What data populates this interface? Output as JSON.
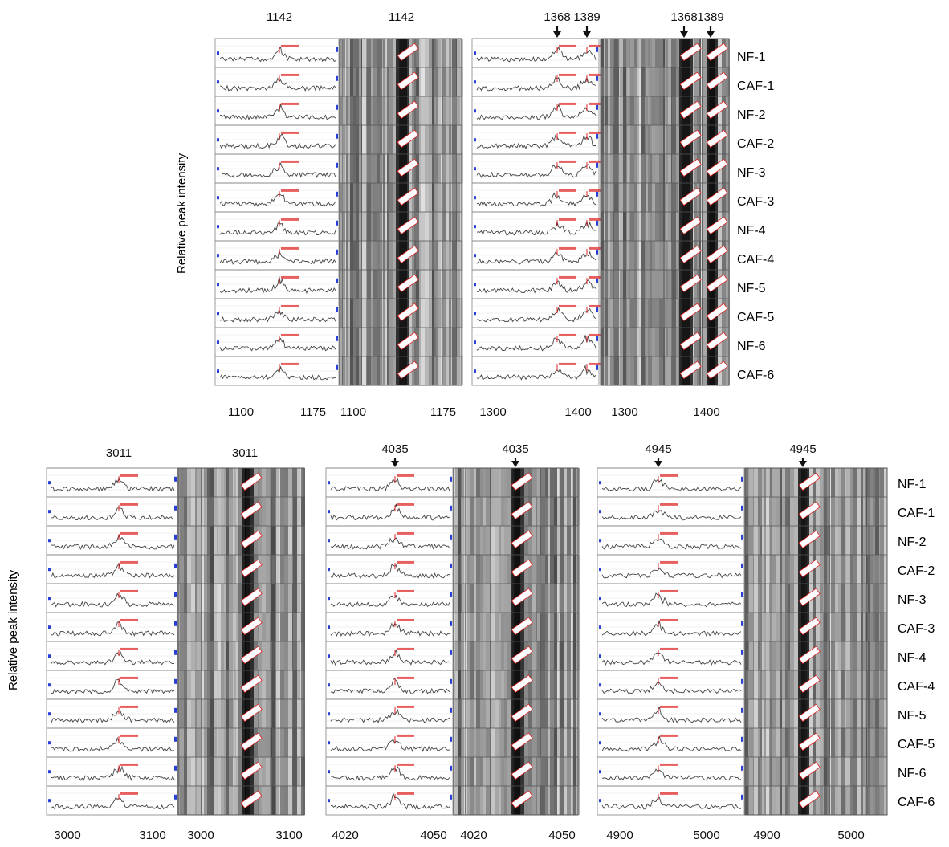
{
  "figure": {
    "ylabel": "Relative peak intensity",
    "samples": [
      "NF-1",
      "CAF-1",
      "NF-2",
      "CAF-2",
      "NF-3",
      "CAF-3",
      "NF-4",
      "CAF-4",
      "NF-5",
      "CAF-5",
      "NF-6",
      "CAF-6"
    ]
  },
  "chart_data": [
    {
      "type": "line",
      "description": "MALDI spectra around m/z 1142 (line view + gel view)",
      "peak_labels": [
        "1142",
        "1142"
      ],
      "x_ticks": [
        "1100",
        "1175"
      ],
      "gel_x_ticks": [
        "1100",
        "1175"
      ],
      "xlim": [
        1080,
        1200
      ]
    },
    {
      "type": "line",
      "description": "MALDI spectra around m/z 1368 and 1389 (line view + gel view)",
      "peak_labels": [
        "1368",
        "1389",
        "1368",
        "1389"
      ],
      "x_ticks": [
        "1300",
        "1400"
      ],
      "gel_x_ticks": [
        "1300",
        "1400"
      ],
      "xlim": [
        1280,
        1420
      ]
    },
    {
      "type": "line",
      "description": "MALDI spectra around m/z 3011 (line view + gel view)",
      "peak_labels": [
        "3011",
        "3011"
      ],
      "x_ticks": [
        "3000",
        "3100"
      ],
      "gel_x_ticks": [
        "3000",
        "3100"
      ],
      "xlim": [
        2990,
        3120
      ]
    },
    {
      "type": "line",
      "description": "MALDI spectra around m/z 4035 (line view + gel view)",
      "peak_labels": [
        "4035",
        "4035"
      ],
      "x_ticks": [
        "4020",
        "4050"
      ],
      "gel_x_ticks": [
        "4020",
        "4050"
      ],
      "xlim": [
        4015,
        4052
      ]
    },
    {
      "type": "line",
      "description": "MALDI spectra around m/z 4945 (line view + gel view)",
      "peak_labels": [
        "4945",
        "4945"
      ],
      "x_ticks": [
        "4900",
        "5000"
      ],
      "gel_x_ticks": [
        "4900",
        "5000"
      ],
      "xlim": [
        4890,
        5010
      ]
    }
  ],
  "colors": {
    "trace": "#444444",
    "peak_marker": "#e02020",
    "gel_dark": "#000000",
    "gel_light": "#e8e8e8",
    "row_bg": "#ffffff",
    "blue_marker": "#2a3fd6"
  }
}
